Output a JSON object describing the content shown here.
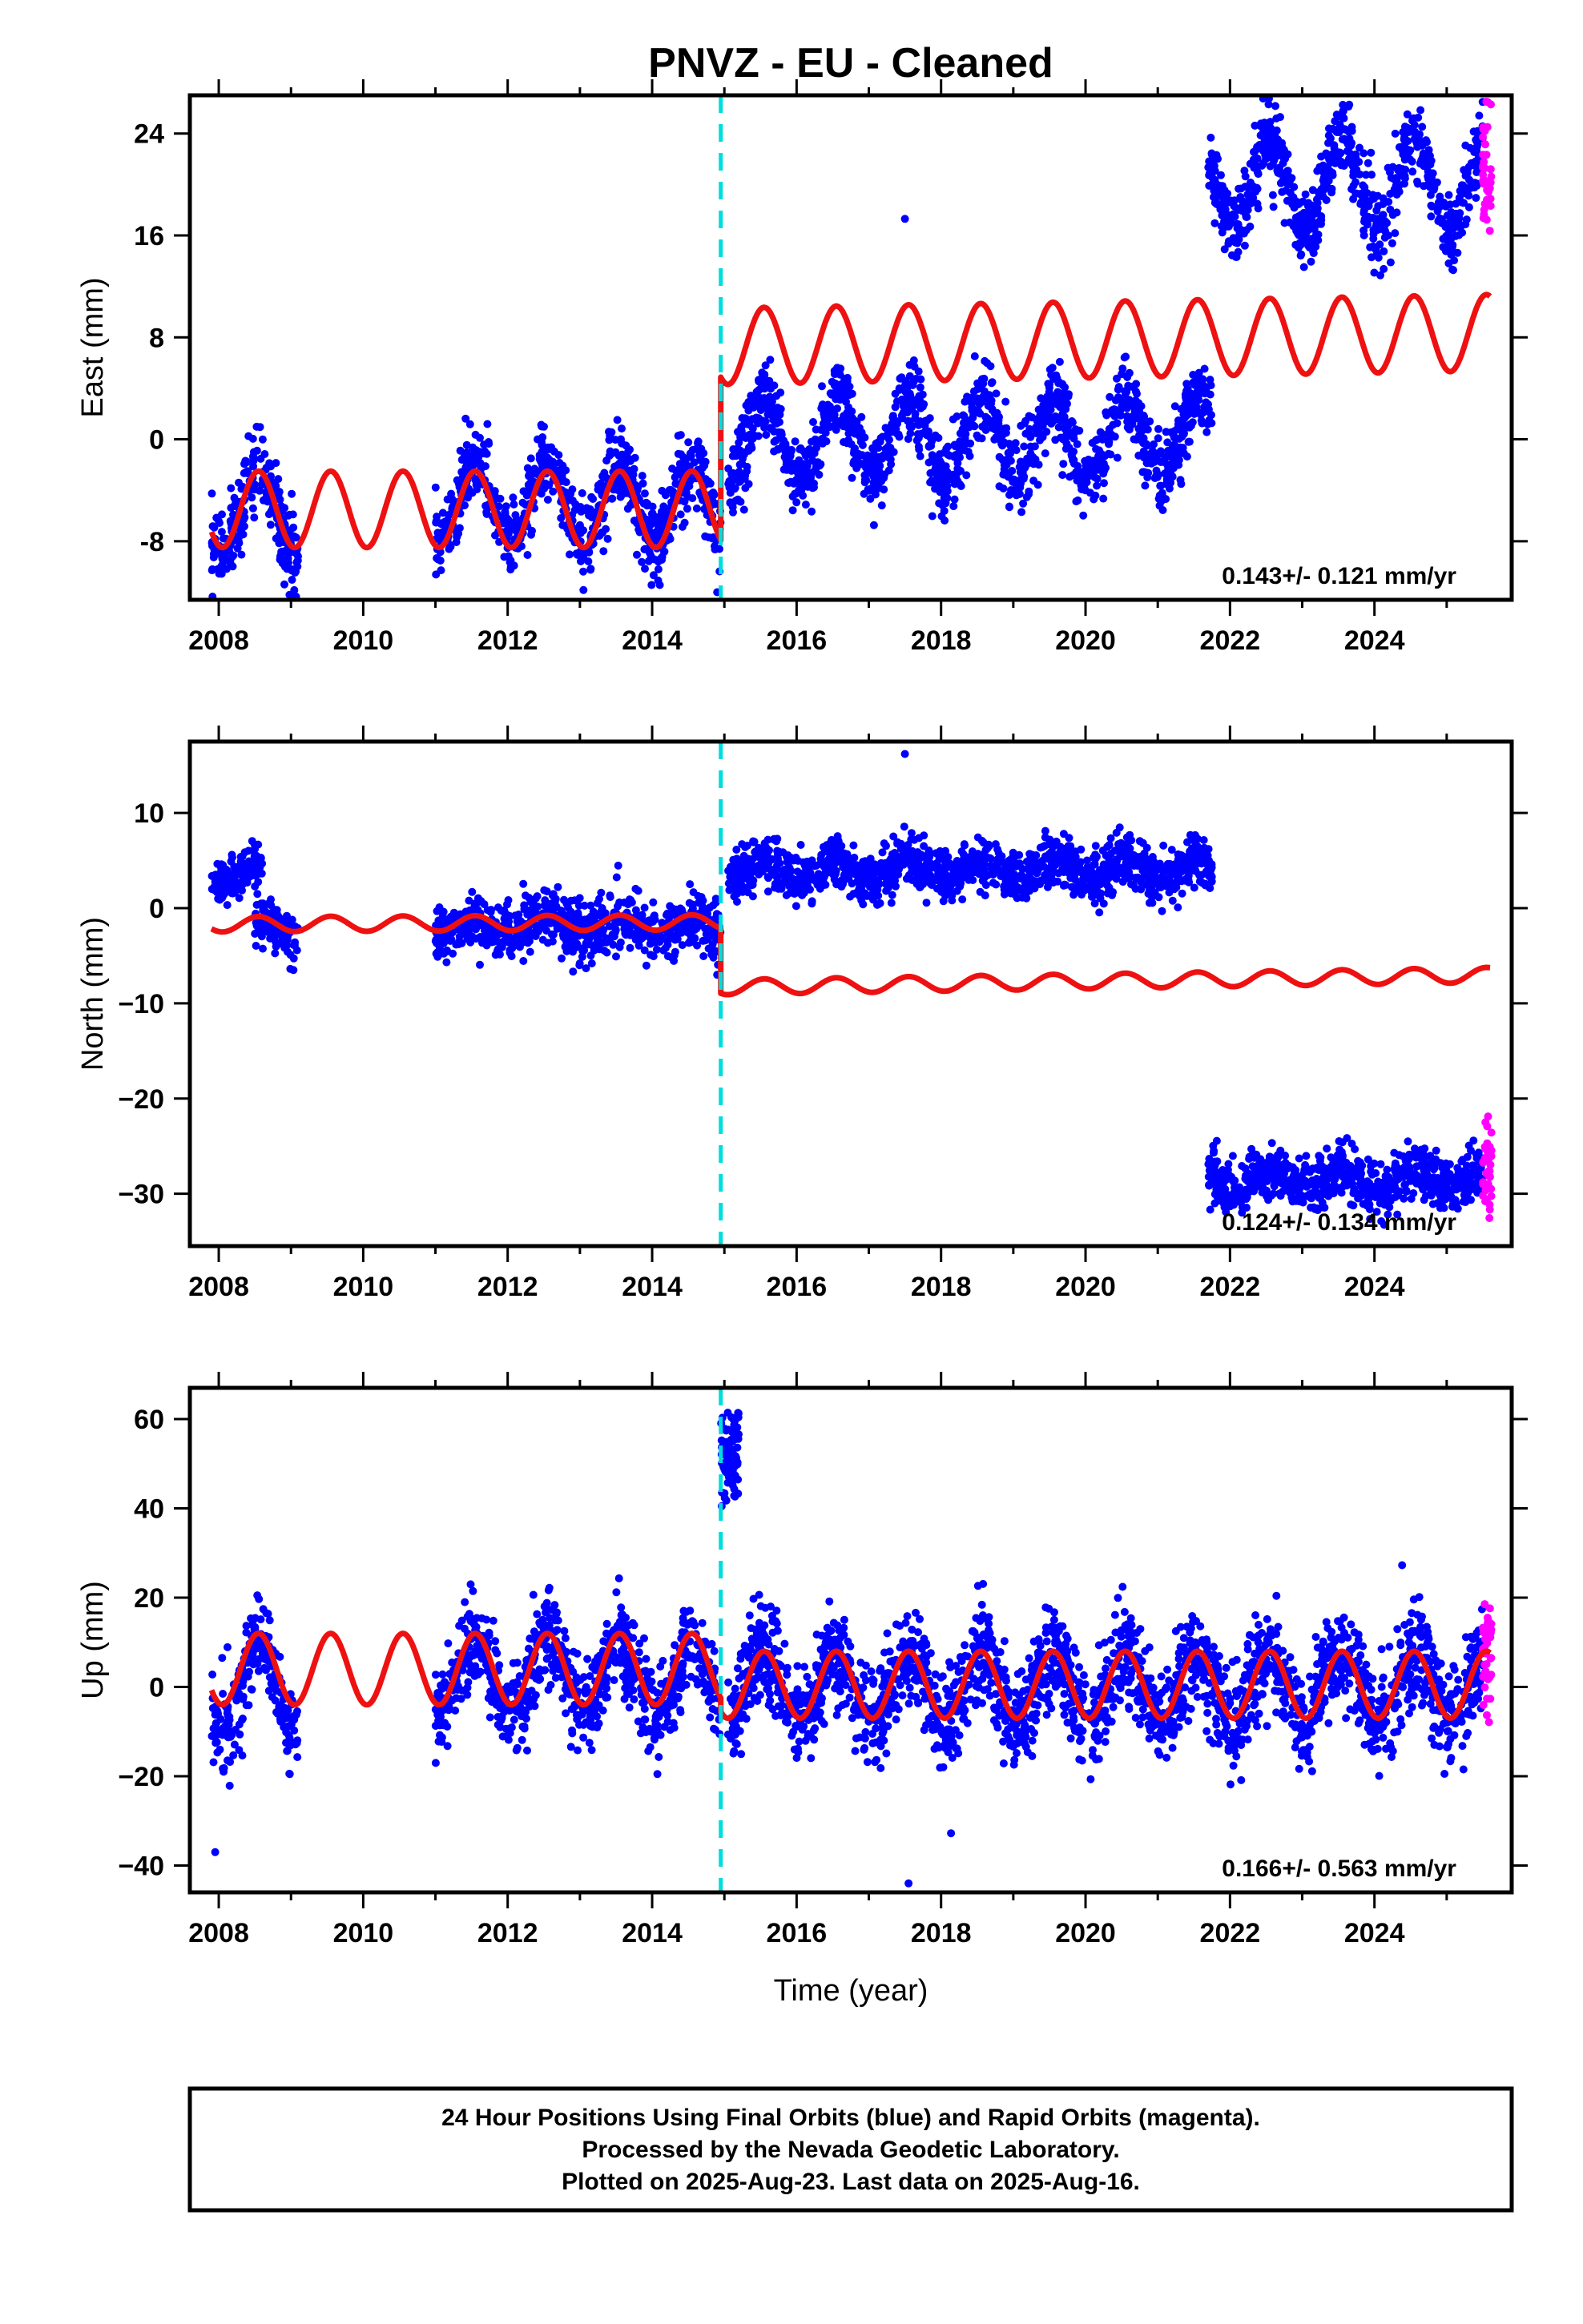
{
  "title": "PNVZ  - EU - Cleaned",
  "xlabel": "Time (year)",
  "footer": {
    "line1": "24 Hour Positions Using Final Orbits (blue) and Rapid Orbits (magenta).",
    "line2": "Processed by the Nevada Geodetic Laboratory.",
    "line3": "Plotted on 2025-Aug-23. Last data on 2025-Aug-16."
  },
  "colors": {
    "final_orbits": "#0000ff",
    "rapid_orbits": "#ff00ff",
    "model": "#ee1111",
    "offset_marker": "#00dddd"
  },
  "chart_data": [
    {
      "type": "scatter",
      "component": "east",
      "ylabel": "East (mm)",
      "xlim": [
        2007.6,
        2025.9
      ],
      "ylim": [
        -12.6,
        27
      ],
      "xticks": [
        "2008",
        "2010",
        "2012",
        "2014",
        "2016",
        "2018",
        "2020",
        "2022",
        "2024"
      ],
      "yticks": [
        "-8",
        "0",
        "8",
        "16",
        "24"
      ],
      "offset_epoch": 2014.95,
      "rate_label": "0.143+/- 0.121 mm/yr",
      "data_segments": [
        {
          "x_start": 2007.9,
          "x_end": 2009.1,
          "mean": -5.5,
          "amplitude": 3.5,
          "noise": 1.6
        },
        {
          "x_start": 2011.0,
          "x_end": 2014.95,
          "mean": -5.0,
          "amplitude": 3.0,
          "noise": 1.5
        },
        {
          "x_start": 2015.05,
          "x_end": 2021.75,
          "mean": 0.0,
          "amplitude": 3.2,
          "noise": 1.5
        },
        {
          "x_start": 2021.7,
          "x_end": 2025.5,
          "mean": 20.0,
          "amplitude": 3.5,
          "noise": 1.5
        }
      ],
      "rapid_segment": {
        "x_start": 2025.5,
        "x_end": 2025.62,
        "mean": 21.0,
        "noise": 2.5
      },
      "outliers": [
        {
          "x": 2014.9,
          "y": -12.0
        },
        {
          "x": 2017.5,
          "y": 17.3
        }
      ],
      "model_segments": [
        {
          "x_start": 2007.9,
          "x_end": 2014.95,
          "mean": -5.5,
          "slope": 0.0,
          "amplitude": 3.0
        },
        {
          "x_start": 2014.95,
          "x_end": 2025.6,
          "mean": 7.3,
          "slope": 0.1,
          "amplitude": 3.0
        }
      ]
    },
    {
      "type": "scatter",
      "component": "north",
      "ylabel": "North (mm)",
      "xlim": [
        2007.6,
        2025.9
      ],
      "ylim": [
        -35.5,
        17.5
      ],
      "xticks": [
        "2008",
        "2010",
        "2012",
        "2014",
        "2016",
        "2018",
        "2020",
        "2022",
        "2024"
      ],
      "yticks": [
        "10",
        "0",
        "−10",
        "−20",
        "−30"
      ],
      "offset_epoch": 2014.95,
      "rate_label": "0.124+/- 0.134 mm/yr",
      "data_segments": [
        {
          "x_start": 2007.9,
          "x_end": 2008.6,
          "mean": 3.5,
          "amplitude": 1.0,
          "noise": 1.2
        },
        {
          "x_start": 2008.5,
          "x_end": 2009.1,
          "mean": -2.0,
          "amplitude": 0.8,
          "noise": 1.2
        },
        {
          "x_start": 2011.0,
          "x_end": 2014.95,
          "mean": -2.0,
          "amplitude": 0.8,
          "noise": 1.5
        },
        {
          "x_start": 2015.05,
          "x_end": 2021.75,
          "mean": 4.0,
          "amplitude": 1.0,
          "noise": 1.3
        },
        {
          "x_start": 2021.7,
          "x_end": 2025.5,
          "mean": -28.5,
          "amplitude": 1.0,
          "noise": 1.4
        }
      ],
      "rapid_segment": {
        "x_start": 2025.5,
        "x_end": 2025.62,
        "mean": -27.5,
        "noise": 2.0
      },
      "outliers": [
        {
          "x": 2017.5,
          "y": 16.2
        },
        {
          "x": 2014.9,
          "y": -7.0
        }
      ],
      "model_segments": [
        {
          "x_start": 2007.9,
          "x_end": 2014.95,
          "mean": -1.7,
          "slope": 0.03,
          "amplitude": 0.8
        },
        {
          "x_start": 2014.95,
          "x_end": 2025.6,
          "mean": -8.3,
          "slope": 0.12,
          "amplitude": 0.8
        }
      ]
    },
    {
      "type": "scatter",
      "component": "up",
      "ylabel": "Up (mm)",
      "xlim": [
        2007.6,
        2025.9
      ],
      "ylim": [
        -46,
        67
      ],
      "xticks": [
        "2008",
        "2010",
        "2012",
        "2014",
        "2016",
        "2018",
        "2020",
        "2022",
        "2024"
      ],
      "yticks": [
        "60",
        "40",
        "20",
        "0",
        "−20",
        "−40"
      ],
      "offset_epoch": 2014.95,
      "rate_label": "0.166+/- 0.563 mm/yr",
      "data_segments": [
        {
          "x_start": 2007.9,
          "x_end": 2009.1,
          "mean": 0.0,
          "amplitude": 10.0,
          "noise": 5.0
        },
        {
          "x_start": 2011.0,
          "x_end": 2014.95,
          "mean": 2.0,
          "amplitude": 8.0,
          "noise": 5.0
        },
        {
          "x_start": 2015.05,
          "x_end": 2025.5,
          "mean": 0.0,
          "amplitude": 7.5,
          "noise": 5.5
        }
      ],
      "jump_cluster": {
        "x_start": 2014.95,
        "x_end": 2015.2,
        "mean": 52.0,
        "noise": 6.0
      },
      "rapid_segment": {
        "x_start": 2025.5,
        "x_end": 2025.62,
        "mean": 8.0,
        "noise": 6.0
      },
      "outliers": [
        {
          "x": 2007.95,
          "y": -37.0
        },
        {
          "x": 2017.55,
          "y": -44.0
        }
      ],
      "model_segments": [
        {
          "x_start": 2007.9,
          "x_end": 2014.95,
          "mean": 4.0,
          "slope": 0.0,
          "amplitude": 8.0
        },
        {
          "x_start": 2014.95,
          "x_end": 2025.6,
          "mean": 0.5,
          "slope": 0.0,
          "amplitude": 7.5
        }
      ]
    }
  ]
}
